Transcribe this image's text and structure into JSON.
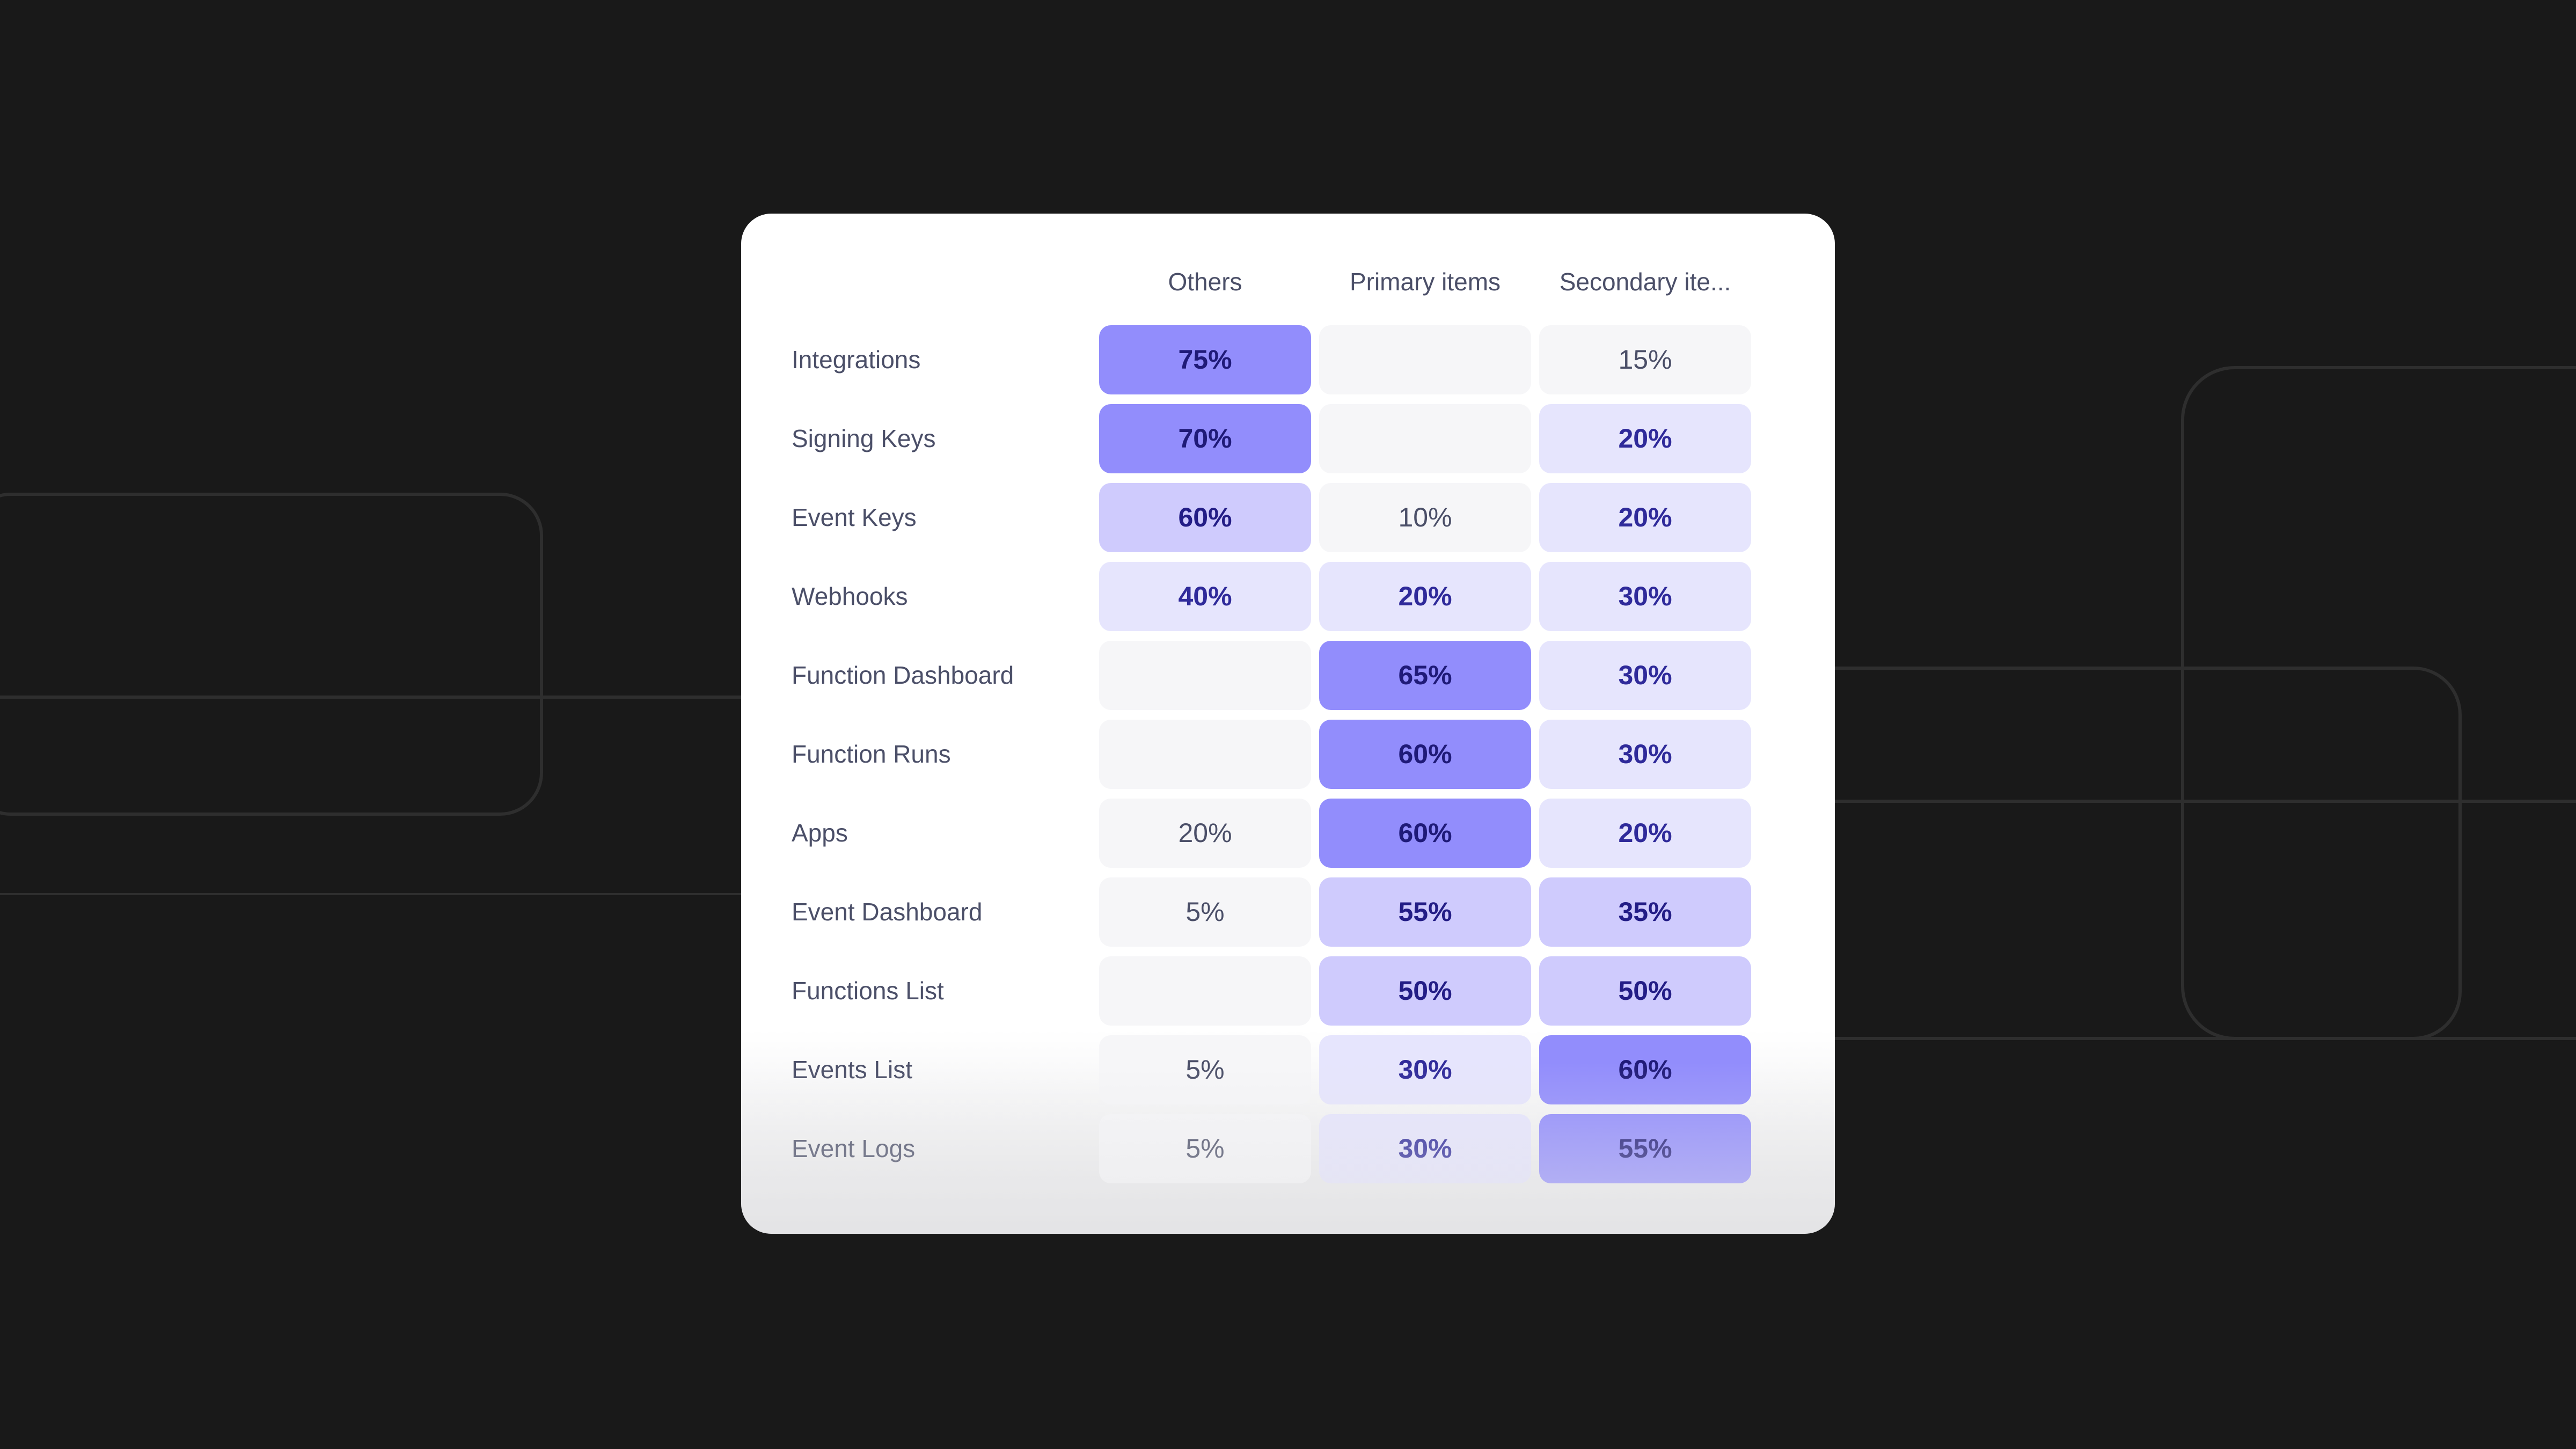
{
  "chart_data": {
    "type": "heatmap",
    "columns": [
      "Others",
      "Primary items",
      "Secondary ite..."
    ],
    "rows": [
      {
        "label": "Integrations",
        "cells": [
          {
            "value": "75%",
            "level": 3
          },
          {
            "value": "",
            "level": 0
          },
          {
            "value": "15%",
            "level": 0
          }
        ]
      },
      {
        "label": "Signing Keys",
        "cells": [
          {
            "value": "70%",
            "level": 3
          },
          {
            "value": "",
            "level": 0
          },
          {
            "value": "20%",
            "level": 1
          }
        ]
      },
      {
        "label": "Event Keys",
        "cells": [
          {
            "value": "60%",
            "level": 2
          },
          {
            "value": "10%",
            "level": 0
          },
          {
            "value": "20%",
            "level": 1
          }
        ]
      },
      {
        "label": "Webhooks",
        "cells": [
          {
            "value": "40%",
            "level": 1
          },
          {
            "value": "20%",
            "level": 1
          },
          {
            "value": "30%",
            "level": 1
          }
        ]
      },
      {
        "label": "Function Dashboard",
        "cells": [
          {
            "value": "",
            "level": 0
          },
          {
            "value": "65%",
            "level": 3
          },
          {
            "value": "30%",
            "level": 1
          }
        ]
      },
      {
        "label": "Function Runs",
        "cells": [
          {
            "value": "",
            "level": 0
          },
          {
            "value": "60%",
            "level": 3
          },
          {
            "value": "30%",
            "level": 1
          }
        ]
      },
      {
        "label": "Apps",
        "cells": [
          {
            "value": "20%",
            "level": 0
          },
          {
            "value": "60%",
            "level": 3
          },
          {
            "value": "20%",
            "level": 1
          }
        ]
      },
      {
        "label": "Event Dashboard",
        "cells": [
          {
            "value": "5%",
            "level": 0
          },
          {
            "value": "55%",
            "level": 2
          },
          {
            "value": "35%",
            "level": 2
          }
        ]
      },
      {
        "label": "Functions List",
        "cells": [
          {
            "value": "",
            "level": 0
          },
          {
            "value": "50%",
            "level": 2
          },
          {
            "value": "50%",
            "level": 2
          }
        ]
      },
      {
        "label": "Events List",
        "cells": [
          {
            "value": "5%",
            "level": 0
          },
          {
            "value": "30%",
            "level": 1
          },
          {
            "value": "60%",
            "level": 3
          }
        ]
      },
      {
        "label": "Event Logs",
        "cells": [
          {
            "value": "5%",
            "level": 0
          },
          {
            "value": "30%",
            "level": 1
          },
          {
            "value": "55%",
            "level": 3
          }
        ]
      }
    ],
    "level_colors": [
      "#f6f6f8",
      "#e6e5fd",
      "#cfcbfd",
      "#928dfc"
    ]
  }
}
